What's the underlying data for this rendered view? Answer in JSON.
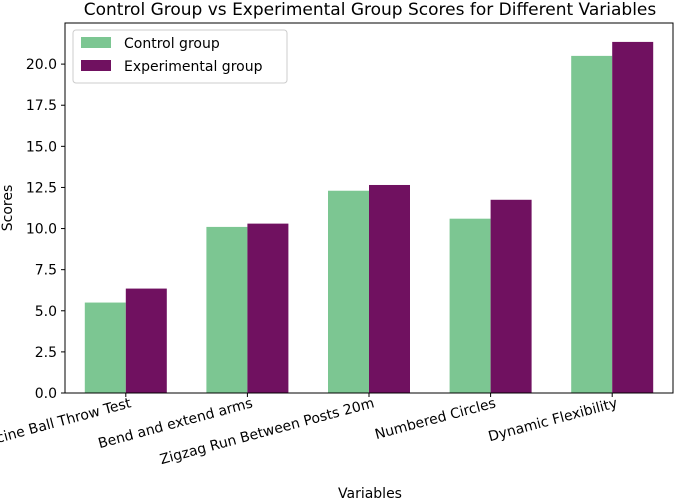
{
  "chart_data": {
    "type": "bar",
    "title": "Control Group vs Experimental Group Scores for Different Variables",
    "xlabel": "Variables",
    "ylabel": "Scores",
    "categories": [
      "Medicine Ball Throw Test",
      "Bend and extend arms",
      "Zigzag Run Between Posts 20m",
      "Numbered Circles",
      "Dynamic Flexibility"
    ],
    "series": [
      {
        "name": "Control group",
        "values": [
          5.5,
          10.1,
          12.3,
          10.6,
          20.5
        ],
        "color": "#7cc692"
      },
      {
        "name": "Experimental group",
        "values": [
          6.35,
          10.3,
          12.65,
          11.75,
          21.35
        ],
        "color": "#701160"
      }
    ],
    "ylim": [
      0,
      22.5
    ],
    "yticks": [
      0.0,
      2.5,
      5.0,
      7.5,
      10.0,
      12.5,
      15.0,
      17.5,
      20.0
    ],
    "ytick_labels": [
      "0.0",
      "2.5",
      "5.0",
      "7.5",
      "10.0",
      "12.5",
      "15.0",
      "17.5",
      "20.0"
    ],
    "grid": false,
    "legend_position": "top-left"
  }
}
